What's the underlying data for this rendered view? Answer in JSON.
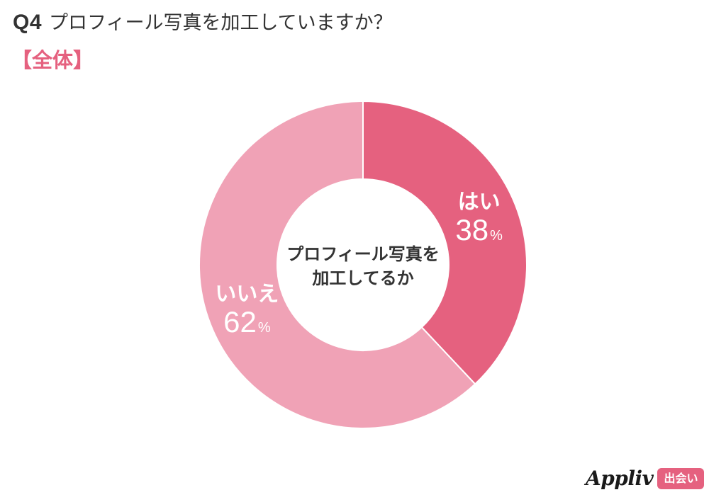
{
  "header": {
    "question_number": "Q4",
    "question_text": "プロフィール写真を加工していますか？",
    "segment_label": "【全体】"
  },
  "logo": {
    "wordmark": "Appliv",
    "badge": "出会い"
  },
  "colors": {
    "text": "#333333",
    "accent": "#e5617f",
    "yes_slice": "#e5617f",
    "no_slice": "#f0a2b6",
    "label_on_slice": "#ffffff"
  },
  "chart_data": {
    "type": "pie",
    "donut": true,
    "center_label_lines": [
      "プロフィール写真を",
      "加工してるか"
    ],
    "slices": [
      {
        "label": "はい",
        "value": 38,
        "display": "38",
        "unit": "%",
        "color": "#e5617f"
      },
      {
        "label": "いいえ",
        "value": 62,
        "display": "62",
        "unit": "%",
        "color": "#f0a2b6"
      }
    ],
    "start": "12 o'clock",
    "direction": "clockwise"
  }
}
